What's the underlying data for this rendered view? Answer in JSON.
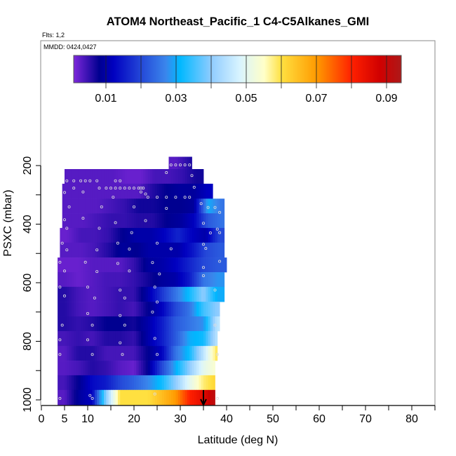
{
  "chart_data": {
    "type": "heatmap",
    "title": "ATOM4 Northeast_Pacific_1 C4-C5Alkanes_GMI",
    "subtitle_flights": "Flts: 1,2",
    "annotation_dates": "MMDD: 0424,0427",
    "xlabel": "Latitude (deg N)",
    "ylabel": "PSXC (mbar)",
    "xlim": [
      0,
      85
    ],
    "ylim": [
      1015,
      -225
    ],
    "x_ticks": [
      0,
      5,
      10,
      15,
      20,
      25,
      30,
      35,
      40,
      45,
      50,
      55,
      60,
      65,
      70,
      75,
      80,
      85
    ],
    "x_tick_labels": [
      "0",
      "5",
      "10",
      "20",
      "30",
      "40",
      "50",
      "60",
      "70",
      "80"
    ],
    "x_tick_label_values": [
      0,
      5,
      10,
      20,
      30,
      40,
      50,
      60,
      70,
      80
    ],
    "y_ticks": [
      200,
      300,
      400,
      500,
      600,
      700,
      800,
      900,
      1000
    ],
    "y_tick_labels": [
      "200",
      "400",
      "600",
      "800",
      "1000"
    ],
    "y_tick_label_values": [
      200,
      400,
      600,
      800,
      1000
    ],
    "colorbar": {
      "range": [
        0.0008,
        0.0943
      ],
      "ticks": [
        0.01,
        0.02,
        0.03,
        0.04,
        0.05,
        0.06,
        0.07,
        0.08,
        0.09
      ],
      "tick_labels": [
        "0.01",
        "0.03",
        "0.05",
        "0.07",
        "0.09"
      ],
      "tick_label_values": [
        0.01,
        0.03,
        0.05,
        0.07,
        0.09
      ],
      "stops": [
        [
          0,
          "#8a2be2"
        ],
        [
          0.008,
          "#000090"
        ],
        [
          0.012,
          "#0000c0"
        ],
        [
          0.02,
          "#2448d8"
        ],
        [
          0.027,
          "#3a86ec"
        ],
        [
          0.031,
          "#00b8ff"
        ],
        [
          0.04,
          "#90ccff"
        ],
        [
          0.048,
          "#d8f4ff"
        ],
        [
          0.055,
          "#ffffc8"
        ],
        [
          0.06,
          "#ffe040"
        ],
        [
          0.07,
          "#ff9a00"
        ],
        [
          0.08,
          "#ff2000"
        ],
        [
          0.088,
          "#d00000"
        ],
        [
          0.095,
          "#a81c1c"
        ]
      ]
    },
    "bin_width_deg": 3,
    "rows": [
      {
        "p": [
          170,
          212
        ],
        "lat": [
          27.5,
          32.5
        ],
        "values": [
          0.003,
          0.006,
          0.009
        ]
      },
      {
        "p": [
          212,
          262
        ],
        "lat": [
          5,
          35
        ],
        "values": [
          0.003,
          0.003,
          0.003,
          0.003,
          0.002,
          0.002,
          0.004,
          0.004,
          0.005,
          0.007
        ]
      },
      {
        "p": [
          262,
          313
        ],
        "lat": [
          4.5,
          37
        ],
        "values": [
          0.003,
          0.003,
          0.003,
          0.003,
          0.003,
          0.003,
          0.006,
          0.008,
          0.009,
          0.009,
          0.012
        ]
      },
      {
        "p": [
          313,
          363
        ],
        "lat": [
          4.5,
          39.5
        ],
        "values": [
          0.003,
          0.003,
          0.003,
          0.004,
          0.005,
          0.007,
          0.007,
          0.008,
          0.008,
          0.009,
          0.03,
          0.025
        ]
      },
      {
        "p": [
          363,
          413
        ],
        "lat": [
          4.5,
          39.5
        ],
        "values": [
          0.003,
          0.003,
          0.004,
          0.005,
          0.005,
          0.006,
          0.006,
          0.008,
          0.009,
          0.012,
          0.022,
          0.025
        ]
      },
      {
        "p": [
          413,
          463
        ],
        "lat": [
          4,
          39.5
        ],
        "values": [
          0.002,
          0.004,
          0.004,
          0.005,
          0.008,
          0.01,
          0.01,
          0.012,
          0.016,
          0.012,
          0.01,
          0.02
        ]
      },
      {
        "p": [
          463,
          514
        ],
        "lat": [
          4,
          39.5
        ],
        "values": [
          0.003,
          0.003,
          0.004,
          0.006,
          0.009,
          0.008,
          0.01,
          0.01,
          0.01,
          0.014,
          0.02,
          0.022
        ]
      },
      {
        "p": [
          514,
          564
        ],
        "lat": [
          3.5,
          40
        ],
        "values": [
          0.002,
          0.002,
          0.003,
          0.003,
          0.003,
          0.005,
          0.009,
          0.01,
          0.012,
          0.016,
          0.02,
          0.022
        ]
      },
      {
        "p": [
          564,
          614
        ],
        "lat": [
          3.5,
          39.5
        ],
        "values": [
          0.003,
          0.002,
          0.003,
          0.004,
          0.004,
          0.005,
          0.007,
          0.009,
          0.01,
          0.015,
          0.025,
          0.028
        ]
      },
      {
        "p": [
          614,
          665
        ],
        "lat": [
          3.5,
          39.5
        ],
        "values": [
          0.006,
          0.004,
          0.003,
          0.004,
          0.005,
          0.005,
          0.01,
          0.018,
          0.025,
          0.032,
          0.04,
          0.03
        ]
      },
      {
        "p": [
          665,
          715
        ],
        "lat": [
          3.5,
          38.5
        ],
        "values": [
          0.006,
          0.004,
          0.003,
          0.004,
          0.005,
          0.004,
          0.008,
          0.012,
          0.02,
          0.025,
          0.035,
          0.04
        ]
      },
      {
        "p": [
          715,
          765
        ],
        "lat": [
          3.5,
          38.5
        ],
        "values": [
          0.006,
          0.005,
          0.006,
          0.008,
          0.008,
          0.007,
          0.01,
          0.015,
          0.022,
          0.025,
          0.028,
          0.045
        ]
      },
      {
        "p": [
          765,
          816
        ],
        "lat": [
          3.5,
          38
        ],
        "values": [
          0.004,
          0.005,
          0.004,
          0.006,
          0.006,
          0.005,
          0.01,
          0.015,
          0.022,
          0.03,
          0.032,
          0.045
        ]
      },
      {
        "p": [
          816,
          866
        ],
        "lat": [
          3.5,
          38
        ],
        "values": [
          0.003,
          0.006,
          0.006,
          0.004,
          0.004,
          0.004,
          0.008,
          0.012,
          0.025,
          0.032,
          0.045,
          0.06
        ]
      },
      {
        "p": [
          866,
          916
        ],
        "lat": [
          3.5,
          37.5
        ],
        "values": [
          0.003,
          0.004,
          0.006,
          0.005,
          0.003,
          0.002,
          0.008,
          0.02,
          0.03,
          0.04,
          0.05,
          0.055
        ]
      },
      {
        "p": [
          916,
          966
        ],
        "lat": [
          3.5,
          37.5
        ],
        "values": [
          0.004,
          0.008,
          0.013,
          0.015,
          0.02,
          0.023,
          0.027,
          0.032,
          0.04,
          0.05,
          0.058,
          0.062
        ]
      },
      {
        "p": [
          966,
          1017
        ],
        "lat": [
          3.5,
          37.5
        ],
        "values": [
          0.003,
          0.009,
          0.012,
          0.04,
          0.06,
          0.06,
          0.06,
          0.065,
          0.07,
          0.08,
          0.085,
          0.093
        ]
      }
    ],
    "flight_points": [
      [
        28,
        198
      ],
      [
        29,
        198
      ],
      [
        30,
        198
      ],
      [
        31,
        198
      ],
      [
        32,
        198
      ],
      [
        27,
        224
      ],
      [
        32.5,
        234
      ],
      [
        5.5,
        252
      ],
      [
        7,
        252
      ],
      [
        8.5,
        252
      ],
      [
        9.5,
        252
      ],
      [
        10.5,
        252
      ],
      [
        12,
        252
      ],
      [
        16,
        252
      ],
      [
        17,
        252
      ],
      [
        7,
        277
      ],
      [
        12.5,
        277
      ],
      [
        14,
        277
      ],
      [
        15,
        277
      ],
      [
        16,
        277
      ],
      [
        17,
        277
      ],
      [
        18,
        277
      ],
      [
        19,
        277
      ],
      [
        20,
        277
      ],
      [
        21,
        277
      ],
      [
        21.5,
        277
      ],
      [
        22,
        277
      ],
      [
        33,
        274
      ],
      [
        5,
        292
      ],
      [
        9,
        290
      ],
      [
        15.5,
        308
      ],
      [
        21.5,
        290
      ],
      [
        22.5,
        297
      ],
      [
        23,
        308
      ],
      [
        25,
        308
      ],
      [
        27,
        308
      ],
      [
        29,
        308
      ],
      [
        31,
        308
      ],
      [
        32,
        308
      ],
      [
        6,
        341
      ],
      [
        13,
        341
      ],
      [
        20,
        341
      ],
      [
        27,
        346
      ],
      [
        34.5,
        330
      ],
      [
        36,
        343
      ],
      [
        37.5,
        343
      ],
      [
        38.5,
        360
      ],
      [
        5,
        385
      ],
      [
        9,
        380
      ],
      [
        16,
        395
      ],
      [
        22.5,
        388
      ],
      [
        35,
        397
      ],
      [
        38,
        417
      ],
      [
        5.5,
        414
      ],
      [
        12.5,
        414
      ],
      [
        19.5,
        429
      ],
      [
        38.5,
        429
      ],
      [
        36.5,
        430
      ],
      [
        4.5,
        465
      ],
      [
        16.5,
        465
      ],
      [
        25,
        465
      ],
      [
        35,
        469
      ],
      [
        5.5,
        488
      ],
      [
        12,
        488
      ],
      [
        19,
        485
      ],
      [
        28,
        484
      ],
      [
        35.5,
        483
      ],
      [
        4,
        530
      ],
      [
        9.5,
        530
      ],
      [
        16.5,
        534
      ],
      [
        24,
        531
      ],
      [
        35,
        548
      ],
      [
        38.5,
        527
      ],
      [
        5,
        560
      ],
      [
        12,
        562
      ],
      [
        19,
        560
      ],
      [
        25.5,
        570
      ],
      [
        35,
        576
      ],
      [
        4,
        615
      ],
      [
        10,
        615
      ],
      [
        17,
        625
      ],
      [
        24.5,
        615
      ],
      [
        37.5,
        625
      ],
      [
        5,
        645
      ],
      [
        11.5,
        652
      ],
      [
        18,
        652
      ],
      [
        25,
        666
      ],
      [
        10,
        705
      ],
      [
        17,
        712
      ],
      [
        24,
        700
      ],
      [
        4.5,
        745
      ],
      [
        11,
        745
      ],
      [
        18,
        745
      ],
      [
        37.5,
        745
      ],
      [
        4,
        795
      ],
      [
        10,
        795
      ],
      [
        17,
        805
      ],
      [
        24.5,
        790
      ],
      [
        4,
        845
      ],
      [
        11,
        845
      ],
      [
        17.5,
        845
      ],
      [
        25,
        845
      ],
      [
        38,
        845
      ],
      [
        4,
        995
      ],
      [
        10.5,
        985
      ],
      [
        11,
        995
      ],
      [
        24.5,
        980
      ],
      [
        38,
        995
      ]
    ],
    "marker_arrow_lat": 35
  }
}
